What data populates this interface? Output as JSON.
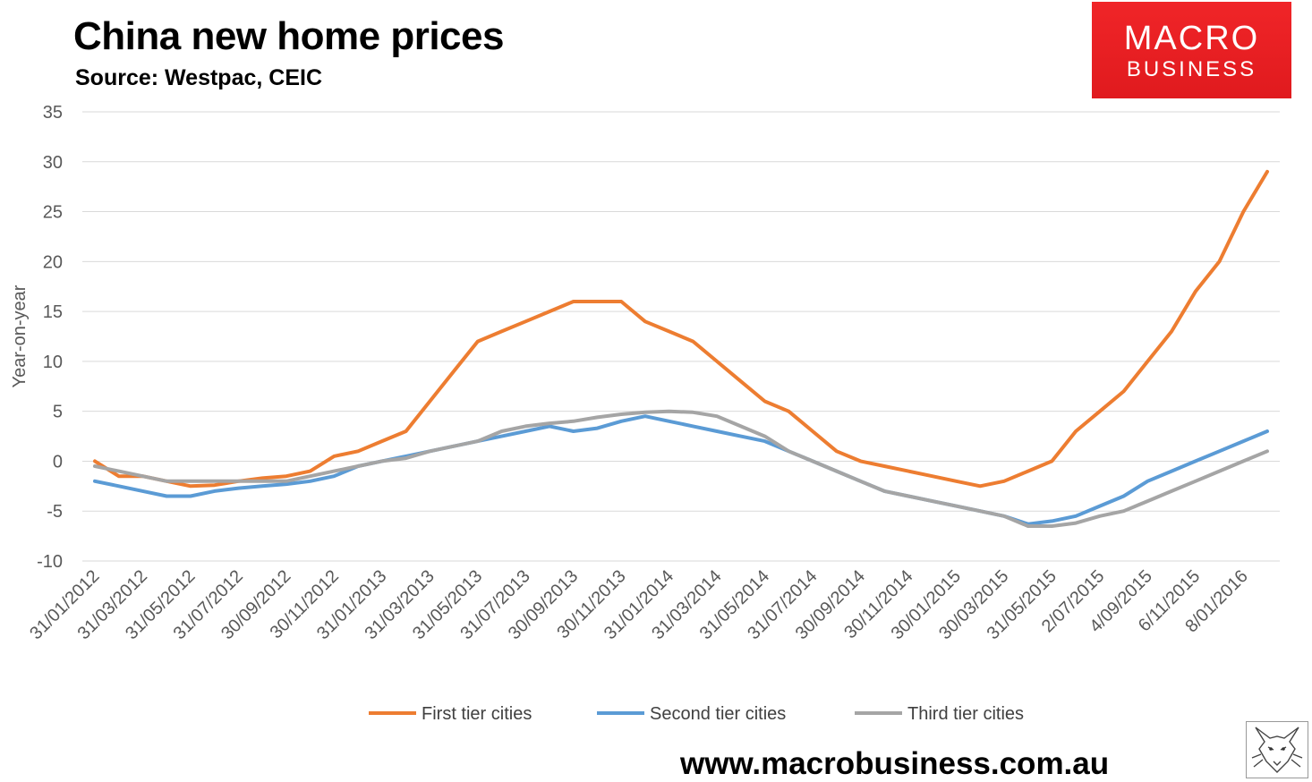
{
  "header": {
    "title": "China new home prices",
    "subtitle": "Source: Westpac, CEIC"
  },
  "logo": {
    "line1": "MACRO",
    "line2": "BUSINESS",
    "color": "#e8202a"
  },
  "footer": {
    "website": "www.macrobusiness.com.au"
  },
  "chart_data": {
    "type": "line",
    "title": "China new home prices",
    "subtitle": "Source: Westpac, CEIC",
    "ylabel": "Year-on-year",
    "xlabel": "",
    "ylim": [
      -10,
      35
    ],
    "yticks": [
      35,
      30,
      25,
      20,
      15,
      10,
      5,
      0,
      -5,
      -10
    ],
    "grid": true,
    "legend_position": "bottom",
    "x": [
      "31/01/2012",
      "29/02/2012",
      "31/03/2012",
      "30/04/2012",
      "31/05/2012",
      "30/06/2012",
      "31/07/2012",
      "31/08/2012",
      "30/09/2012",
      "31/10/2012",
      "30/11/2012",
      "31/12/2012",
      "31/01/2013",
      "28/02/2013",
      "31/03/2013",
      "30/04/2013",
      "31/05/2013",
      "30/06/2013",
      "31/07/2013",
      "31/08/2013",
      "30/09/2013",
      "31/10/2013",
      "30/11/2013",
      "31/12/2013",
      "31/01/2014",
      "28/02/2014",
      "31/03/2014",
      "30/04/2014",
      "31/05/2014",
      "30/06/2014",
      "31/07/2014",
      "31/08/2014",
      "30/09/2014",
      "31/10/2014",
      "30/11/2014",
      "31/12/2014",
      "30/01/2015",
      "28/02/2015",
      "30/03/2015",
      "30/04/2015",
      "31/05/2015",
      "30/06/2015",
      "2/07/2015",
      "4/08/2015",
      "4/09/2015",
      "5/10/2015",
      "6/11/2015",
      "7/12/2015",
      "8/01/2016",
      "9/02/2016"
    ],
    "tick_labels": [
      "31/01/2012",
      "31/03/2012",
      "31/05/2012",
      "31/07/2012",
      "30/09/2012",
      "30/11/2012",
      "31/01/2013",
      "31/03/2013",
      "31/05/2013",
      "31/07/2013",
      "30/09/2013",
      "30/11/2013",
      "31/01/2014",
      "31/03/2014",
      "31/05/2014",
      "31/07/2014",
      "30/09/2014",
      "30/11/2014",
      "30/01/2015",
      "30/03/2015",
      "31/05/2015",
      "2/07/2015",
      "4/09/2015",
      "6/11/2015",
      "8/01/2016"
    ],
    "series": [
      {
        "name": "First tier cities",
        "color": "#ed7d31",
        "values": [
          0,
          -1.5,
          -1.5,
          -2,
          -2.5,
          -2.4,
          -2,
          -1.7,
          -1.5,
          -1,
          0.5,
          1,
          2,
          3,
          6,
          9,
          12,
          13,
          14,
          15,
          16,
          16,
          16,
          14,
          13,
          12,
          10,
          8,
          6,
          5,
          3,
          1,
          0,
          -0.5,
          -1,
          -1.5,
          -2,
          -2.5,
          -2,
          -1,
          0,
          3,
          5,
          7,
          10,
          13,
          17,
          20,
          25,
          29
        ]
      },
      {
        "name": "Second tier cities",
        "color": "#5b9bd5",
        "values": [
          -2,
          -2.5,
          -3,
          -3.5,
          -3.5,
          -3,
          -2.7,
          -2.5,
          -2.3,
          -2,
          -1.5,
          -0.5,
          0,
          0.5,
          1,
          1.5,
          2,
          2.5,
          3,
          3.5,
          3,
          3.3,
          4,
          4.5,
          4,
          3.5,
          3,
          2.5,
          2,
          1,
          0,
          -1,
          -2,
          -3,
          -3.5,
          -4,
          -4.5,
          -5,
          -5.5,
          -6.3,
          -6,
          -5.5,
          -4.5,
          -3.5,
          -2,
          -1,
          0,
          1,
          2,
          3
        ]
      },
      {
        "name": "Third tier cities",
        "color": "#a5a5a5",
        "values": [
          -0.5,
          -1,
          -1.5,
          -2,
          -2,
          -2,
          -2,
          -2,
          -2,
          -1.5,
          -1,
          -0.5,
          0,
          0.3,
          1,
          1.5,
          2,
          3,
          3.5,
          3.8,
          4,
          4.4,
          4.7,
          4.9,
          5,
          4.9,
          4.5,
          3.5,
          2.5,
          1,
          0,
          -1,
          -2,
          -3,
          -3.5,
          -4,
          -4.5,
          -5,
          -5.5,
          -6.5,
          -6.5,
          -6.2,
          -5.5,
          -5,
          -4,
          -3,
          -2,
          -1,
          0,
          1
        ]
      }
    ]
  }
}
